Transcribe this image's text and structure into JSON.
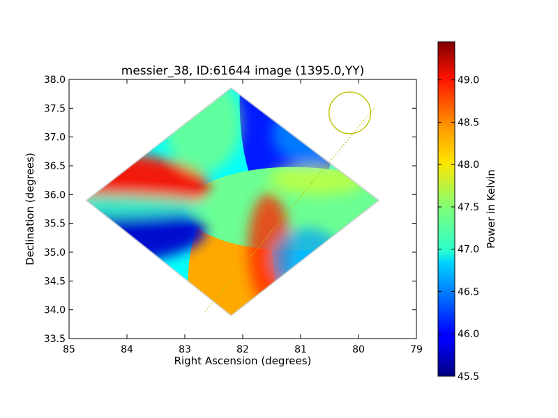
{
  "chart_data": {
    "type": "heatmap",
    "title": "messier_38, ID:61644 image (1395.0,YY)",
    "xlabel": "Right Ascension (degrees)",
    "ylabel": "Declination (degrees)",
    "xlim": [
      85,
      79
    ],
    "ylim": [
      33.5,
      38.0
    ],
    "x_ticks": [
      "85",
      "84",
      "83",
      "82",
      "81",
      "80",
      "79"
    ],
    "y_ticks": [
      "33.5",
      "34.0",
      "34.5",
      "35.0",
      "35.5",
      "36.0",
      "36.5",
      "37.0",
      "37.5",
      "38.0"
    ],
    "colorbar": {
      "label": "Power in Kelvin",
      "range": [
        45.5,
        49.45
      ],
      "ticks": [
        "45.5",
        "46.0",
        "46.5",
        "47.0",
        "47.5",
        "48.0",
        "48.5",
        "49.0"
      ],
      "colormap": "jet"
    },
    "field_region": {
      "shape": "diamond",
      "vertices": [
        [
          84.7,
          35.9
        ],
        [
          82.2,
          37.85
        ],
        [
          79.65,
          35.9
        ],
        [
          82.2,
          33.9
        ]
      ]
    },
    "field_center": [
      82.15,
      35.9
    ],
    "lobes": [
      {
        "name": "top",
        "value": 46.1
      },
      {
        "name": "bottom",
        "value": 48.3
      },
      {
        "name": "left-upper",
        "value": 48.9
      },
      {
        "name": "left-lower",
        "value": 45.8
      },
      {
        "name": "right",
        "value": 47.4
      }
    ],
    "annotations": [
      {
        "type": "circle",
        "center": [
          80.15,
          37.42
        ],
        "radius_x": 0.36,
        "color": "#bfbf00"
      },
      {
        "type": "dotted-line",
        "from": [
          82.65,
          33.97
        ],
        "to": [
          79.73,
          37.5
        ],
        "color": "#bfbf00"
      }
    ]
  }
}
